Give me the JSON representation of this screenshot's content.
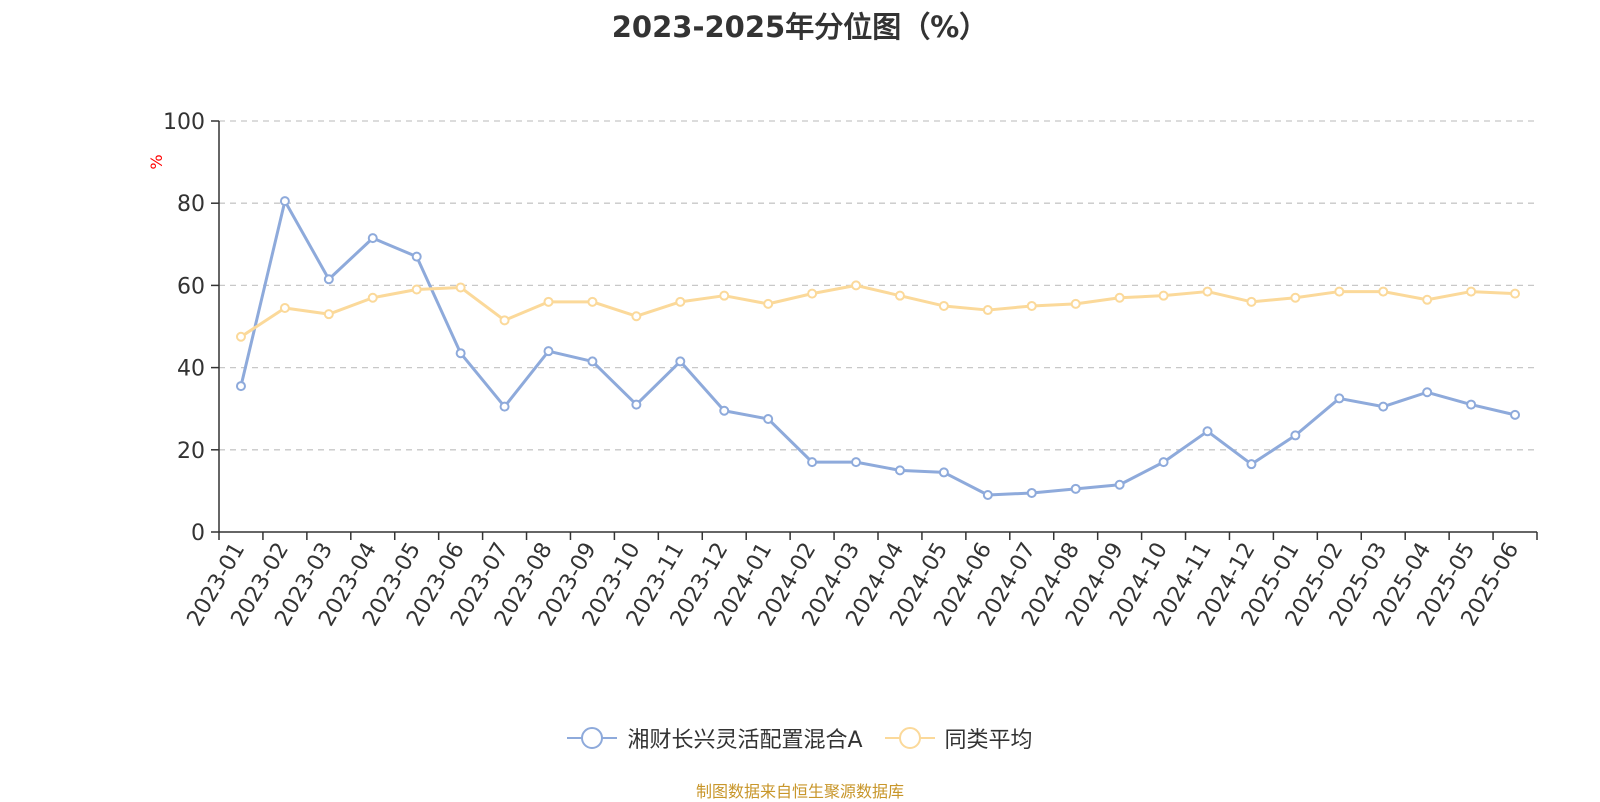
{
  "chart_data": {
    "type": "line",
    "title": "2023-2025年分位图（%）",
    "ylabel": "%",
    "xlabel": "",
    "ylim": [
      0,
      100
    ],
    "yticks": [
      0,
      20,
      40,
      60,
      80,
      100
    ],
    "grid": "horizontal dashed",
    "legend_position": "bottom-center",
    "categories": [
      "2023-01",
      "2023-02",
      "2023-03",
      "2023-04",
      "2023-05",
      "2023-06",
      "2023-07",
      "2023-08",
      "2023-09",
      "2023-10",
      "2023-11",
      "2023-12",
      "2024-01",
      "2024-02",
      "2024-03",
      "2024-04",
      "2024-05",
      "2024-06",
      "2024-07",
      "2024-08",
      "2024-09",
      "2024-10",
      "2024-11",
      "2024-12",
      "2025-01",
      "2025-02",
      "2025-03",
      "2025-04",
      "2025-05",
      "2025-06"
    ],
    "series": [
      {
        "name": "湘财长兴灵活配置混合A",
        "color": "#8eaadb",
        "values": [
          35.5,
          80.5,
          61.5,
          71.5,
          67,
          43.5,
          30.5,
          44,
          41.5,
          31,
          41.5,
          29.5,
          27.5,
          17,
          17,
          15,
          14.5,
          9,
          9.5,
          10.5,
          11.5,
          17,
          24.5,
          16.5,
          23.5,
          32.5,
          30.5,
          34,
          31,
          28.5
        ]
      },
      {
        "name": "同类平均",
        "color": "#fbd99a",
        "values": [
          47.5,
          54.5,
          53,
          57,
          59,
          59.5,
          51.5,
          56,
          56,
          52.5,
          56,
          57.5,
          55.5,
          58,
          60,
          57.5,
          55,
          54,
          55,
          55.5,
          57,
          57.5,
          58.5,
          56,
          57,
          58.5,
          58.5,
          56.5,
          58.5,
          58
        ]
      }
    ]
  },
  "source_note": "制图数据来自恒生聚源数据库",
  "colors": {
    "axis": "#333333",
    "grid": "#c8c8c8",
    "ylabel": "#ff0000",
    "source": "#c8962a"
  }
}
